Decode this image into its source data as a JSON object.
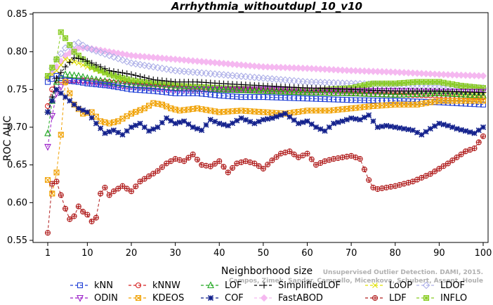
{
  "chart_data": {
    "type": "line",
    "title": "Arrhythmia_withoutdupl_10_v10",
    "xlabel": "Neighborhood size",
    "ylabel": "ROC AUC",
    "xlim": [
      1,
      100
    ],
    "ylim": [
      0.55,
      0.85
    ],
    "xticks": [
      "1",
      "10",
      "20",
      "30",
      "40",
      "50",
      "60",
      "70",
      "80",
      "90",
      "100"
    ],
    "yticks": [
      "0.55",
      "0.60",
      "0.65",
      "0.70",
      "0.75",
      "0.80",
      "0.85"
    ],
    "grid": false,
    "legend_position": "bottom",
    "watermark": "Unsupervised Outlier Detection. DAMI, 2015. Campos, Zimek, Sander, Campello, Micenkova, Schubert, Assent, Houle",
    "series": [
      {
        "name": "kNN",
        "color": "#1f3fd6",
        "dash": "4,3",
        "marker": "square",
        "points": [
          [
            1,
            0.76
          ],
          [
            3,
            0.768
          ],
          [
            5,
            0.762
          ],
          [
            8,
            0.76
          ],
          [
            10,
            0.758
          ],
          [
            15,
            0.755
          ],
          [
            20,
            0.75
          ],
          [
            25,
            0.748
          ],
          [
            30,
            0.745
          ],
          [
            35,
            0.745
          ],
          [
            40,
            0.742
          ],
          [
            45,
            0.74
          ],
          [
            50,
            0.74
          ],
          [
            60,
            0.738
          ],
          [
            70,
            0.736
          ],
          [
            80,
            0.735
          ],
          [
            90,
            0.733
          ],
          [
            100,
            0.73
          ]
        ]
      },
      {
        "name": "kNNW",
        "color": "#d62020",
        "dash": "4,3",
        "marker": "circle",
        "points": [
          [
            1,
            0.728
          ],
          [
            2,
            0.75
          ],
          [
            3,
            0.762
          ],
          [
            5,
            0.762
          ],
          [
            8,
            0.762
          ],
          [
            10,
            0.762
          ],
          [
            15,
            0.76
          ],
          [
            20,
            0.756
          ],
          [
            30,
            0.752
          ],
          [
            40,
            0.75
          ],
          [
            50,
            0.748
          ],
          [
            60,
            0.746
          ],
          [
            70,
            0.745
          ],
          [
            80,
            0.743
          ],
          [
            90,
            0.742
          ],
          [
            100,
            0.74
          ]
        ]
      },
      {
        "name": "LOF",
        "color": "#22a822",
        "dash": "4,3",
        "marker": "triangle",
        "points": [
          [
            1,
            0.692
          ],
          [
            2,
            0.735
          ],
          [
            3,
            0.76
          ],
          [
            5,
            0.77
          ],
          [
            8,
            0.768
          ],
          [
            10,
            0.765
          ],
          [
            15,
            0.76
          ],
          [
            20,
            0.756
          ],
          [
            30,
            0.752
          ],
          [
            40,
            0.75
          ],
          [
            50,
            0.748
          ],
          [
            60,
            0.746
          ],
          [
            70,
            0.745
          ],
          [
            80,
            0.743
          ],
          [
            90,
            0.745
          ],
          [
            100,
            0.742
          ]
        ]
      },
      {
        "name": "SimplifiedLOF",
        "color": "#000000",
        "dash": "4,3",
        "marker": "plus",
        "points": [
          [
            1,
            0.72
          ],
          [
            2,
            0.74
          ],
          [
            3,
            0.765
          ],
          [
            5,
            0.78
          ],
          [
            7,
            0.792
          ],
          [
            9,
            0.79
          ],
          [
            11,
            0.785
          ],
          [
            15,
            0.775
          ],
          [
            20,
            0.77
          ],
          [
            25,
            0.763
          ],
          [
            30,
            0.76
          ],
          [
            35,
            0.76
          ],
          [
            40,
            0.758
          ],
          [
            50,
            0.755
          ],
          [
            60,
            0.752
          ],
          [
            70,
            0.75
          ],
          [
            80,
            0.748
          ],
          [
            90,
            0.748
          ],
          [
            100,
            0.746
          ]
        ]
      },
      {
        "name": "LoOP",
        "color": "#e0e000",
        "dash": "4,3",
        "marker": "x",
        "points": [
          [
            1,
            0.765
          ],
          [
            3,
            0.775
          ],
          [
            5,
            0.79
          ],
          [
            8,
            0.785
          ],
          [
            10,
            0.78
          ],
          [
            15,
            0.77
          ],
          [
            20,
            0.76
          ],
          [
            30,
            0.755
          ],
          [
            40,
            0.752
          ],
          [
            50,
            0.75
          ],
          [
            60,
            0.748
          ],
          [
            70,
            0.746
          ],
          [
            80,
            0.745
          ],
          [
            90,
            0.744
          ],
          [
            100,
            0.742
          ]
        ]
      },
      {
        "name": "LDOF",
        "color": "#aeb0e8",
        "dash": "4,3",
        "marker": "diamond",
        "points": [
          [
            1,
            0.766
          ],
          [
            3,
            0.79
          ],
          [
            5,
            0.805
          ],
          [
            8,
            0.812
          ],
          [
            10,
            0.805
          ],
          [
            15,
            0.795
          ],
          [
            20,
            0.785
          ],
          [
            30,
            0.775
          ],
          [
            40,
            0.77
          ],
          [
            50,
            0.765
          ],
          [
            60,
            0.76
          ],
          [
            70,
            0.758
          ],
          [
            80,
            0.756
          ],
          [
            90,
            0.755
          ],
          [
            100,
            0.752
          ]
        ]
      },
      {
        "name": "ODIN",
        "color": "#9a1fc8",
        "dash": "4,3",
        "marker": "triangle-down",
        "points": [
          [
            1,
            0.674
          ],
          [
            2,
            0.715
          ],
          [
            3,
            0.745
          ],
          [
            5,
            0.762
          ],
          [
            8,
            0.762
          ],
          [
            10,
            0.76
          ],
          [
            15,
            0.756
          ],
          [
            20,
            0.754
          ],
          [
            30,
            0.75
          ],
          [
            40,
            0.75
          ],
          [
            50,
            0.75
          ],
          [
            60,
            0.749
          ],
          [
            70,
            0.748
          ],
          [
            80,
            0.748
          ],
          [
            90,
            0.747
          ],
          [
            100,
            0.747
          ]
        ]
      },
      {
        "name": "KDEOS",
        "color": "#f0a000",
        "dash": "4,3",
        "marker": "square-x",
        "points": [
          [
            1,
            0.63
          ],
          [
            2,
            0.612
          ],
          [
            3,
            0.64
          ],
          [
            4,
            0.69
          ],
          [
            5,
            0.76
          ],
          [
            7,
            0.73
          ],
          [
            9,
            0.718
          ],
          [
            11,
            0.72
          ],
          [
            13,
            0.708
          ],
          [
            15,
            0.705
          ],
          [
            17,
            0.708
          ],
          [
            20,
            0.718
          ],
          [
            23,
            0.725
          ],
          [
            25,
            0.732
          ],
          [
            27,
            0.73
          ],
          [
            29,
            0.725
          ],
          [
            31,
            0.722
          ],
          [
            35,
            0.725
          ],
          [
            40,
            0.72
          ],
          [
            45,
            0.722
          ],
          [
            50,
            0.72
          ],
          [
            55,
            0.718
          ],
          [
            60,
            0.722
          ],
          [
            65,
            0.722
          ],
          [
            70,
            0.725
          ],
          [
            75,
            0.728
          ],
          [
            80,
            0.73
          ],
          [
            85,
            0.73
          ],
          [
            90,
            0.735
          ],
          [
            95,
            0.735
          ],
          [
            100,
            0.735
          ]
        ]
      },
      {
        "name": "COF",
        "color": "#12208c",
        "dash": "4,3",
        "marker": "asterisk",
        "points": [
          [
            1,
            0.72
          ],
          [
            3,
            0.75
          ],
          [
            5,
            0.74
          ],
          [
            8,
            0.725
          ],
          [
            10,
            0.72
          ],
          [
            12,
            0.705
          ],
          [
            14,
            0.692
          ],
          [
            16,
            0.696
          ],
          [
            18,
            0.69
          ],
          [
            20,
            0.7
          ],
          [
            22,
            0.705
          ],
          [
            24,
            0.695
          ],
          [
            26,
            0.7
          ],
          [
            28,
            0.712
          ],
          [
            30,
            0.705
          ],
          [
            32,
            0.708
          ],
          [
            34,
            0.7
          ],
          [
            36,
            0.696
          ],
          [
            38,
            0.71
          ],
          [
            40,
            0.705
          ],
          [
            42,
            0.702
          ],
          [
            45,
            0.712
          ],
          [
            48,
            0.705
          ],
          [
            50,
            0.71
          ],
          [
            52,
            0.712
          ],
          [
            55,
            0.718
          ],
          [
            58,
            0.705
          ],
          [
            60,
            0.708
          ],
          [
            62,
            0.7
          ],
          [
            64,
            0.695
          ],
          [
            66,
            0.705
          ],
          [
            68,
            0.708
          ],
          [
            70,
            0.712
          ],
          [
            72,
            0.71
          ],
          [
            74,
            0.716
          ],
          [
            76,
            0.7
          ],
          [
            78,
            0.702
          ],
          [
            80,
            0.7
          ],
          [
            82,
            0.698
          ],
          [
            84,
            0.696
          ],
          [
            86,
            0.69
          ],
          [
            88,
            0.698
          ],
          [
            90,
            0.705
          ],
          [
            92,
            0.702
          ],
          [
            94,
            0.698
          ],
          [
            96,
            0.695
          ],
          [
            98,
            0.692
          ],
          [
            100,
            0.7
          ]
        ]
      },
      {
        "name": "FastABOD",
        "color": "#f5b8f0",
        "dash": "4,3",
        "marker": "diamond-filled",
        "points": [
          [
            1,
            0.765
          ],
          [
            3,
            0.78
          ],
          [
            5,
            0.795
          ],
          [
            8,
            0.805
          ],
          [
            10,
            0.805
          ],
          [
            15,
            0.8
          ],
          [
            20,
            0.795
          ],
          [
            30,
            0.79
          ],
          [
            40,
            0.785
          ],
          [
            50,
            0.78
          ],
          [
            60,
            0.778
          ],
          [
            70,
            0.775
          ],
          [
            80,
            0.773
          ],
          [
            90,
            0.77
          ],
          [
            100,
            0.768
          ]
        ]
      },
      {
        "name": "LDF",
        "color": "#b01c1c",
        "dash": "4,3",
        "marker": "circle-plus",
        "points": [
          [
            1,
            0.56
          ],
          [
            2,
            0.625
          ],
          [
            3,
            0.628
          ],
          [
            4,
            0.61
          ],
          [
            5,
            0.592
          ],
          [
            6,
            0.578
          ],
          [
            7,
            0.582
          ],
          [
            8,
            0.595
          ],
          [
            9,
            0.588
          ],
          [
            10,
            0.584
          ],
          [
            11,
            0.575
          ],
          [
            12,
            0.58
          ],
          [
            13,
            0.612
          ],
          [
            14,
            0.62
          ],
          [
            15,
            0.61
          ],
          [
            16,
            0.615
          ],
          [
            18,
            0.622
          ],
          [
            20,
            0.615
          ],
          [
            22,
            0.628
          ],
          [
            24,
            0.635
          ],
          [
            26,
            0.642
          ],
          [
            28,
            0.652
          ],
          [
            30,
            0.658
          ],
          [
            32,
            0.655
          ],
          [
            34,
            0.664
          ],
          [
            36,
            0.65
          ],
          [
            38,
            0.648
          ],
          [
            40,
            0.655
          ],
          [
            42,
            0.64
          ],
          [
            44,
            0.652
          ],
          [
            46,
            0.655
          ],
          [
            48,
            0.652
          ],
          [
            50,
            0.645
          ],
          [
            52,
            0.656
          ],
          [
            54,
            0.665
          ],
          [
            56,
            0.668
          ],
          [
            58,
            0.66
          ],
          [
            60,
            0.665
          ],
          [
            62,
            0.65
          ],
          [
            64,
            0.655
          ],
          [
            66,
            0.658
          ],
          [
            68,
            0.66
          ],
          [
            70,
            0.662
          ],
          [
            72,
            0.658
          ],
          [
            74,
            0.63
          ],
          [
            75,
            0.62
          ],
          [
            76,
            0.618
          ],
          [
            78,
            0.62
          ],
          [
            80,
            0.622
          ],
          [
            82,
            0.625
          ],
          [
            84,
            0.628
          ],
          [
            86,
            0.633
          ],
          [
            88,
            0.638
          ],
          [
            90,
            0.645
          ],
          [
            92,
            0.652
          ],
          [
            94,
            0.66
          ],
          [
            96,
            0.668
          ],
          [
            98,
            0.672
          ],
          [
            100,
            0.688
          ]
        ]
      },
      {
        "name": "INFLO",
        "color": "#88cc22",
        "dash": "4,3",
        "marker": "square-star",
        "points": [
          [
            1,
            0.768
          ],
          [
            3,
            0.79
          ],
          [
            4,
            0.826
          ],
          [
            5,
            0.818
          ],
          [
            7,
            0.8
          ],
          [
            9,
            0.79
          ],
          [
            11,
            0.78
          ],
          [
            15,
            0.77
          ],
          [
            20,
            0.762
          ],
          [
            25,
            0.758
          ],
          [
            30,
            0.755
          ],
          [
            40,
            0.752
          ],
          [
            50,
            0.75
          ],
          [
            60,
            0.748
          ],
          [
            70,
            0.752
          ],
          [
            75,
            0.758
          ],
          [
            80,
            0.758
          ],
          [
            85,
            0.76
          ],
          [
            90,
            0.76
          ],
          [
            95,
            0.755
          ],
          [
            100,
            0.752
          ]
        ]
      }
    ]
  }
}
